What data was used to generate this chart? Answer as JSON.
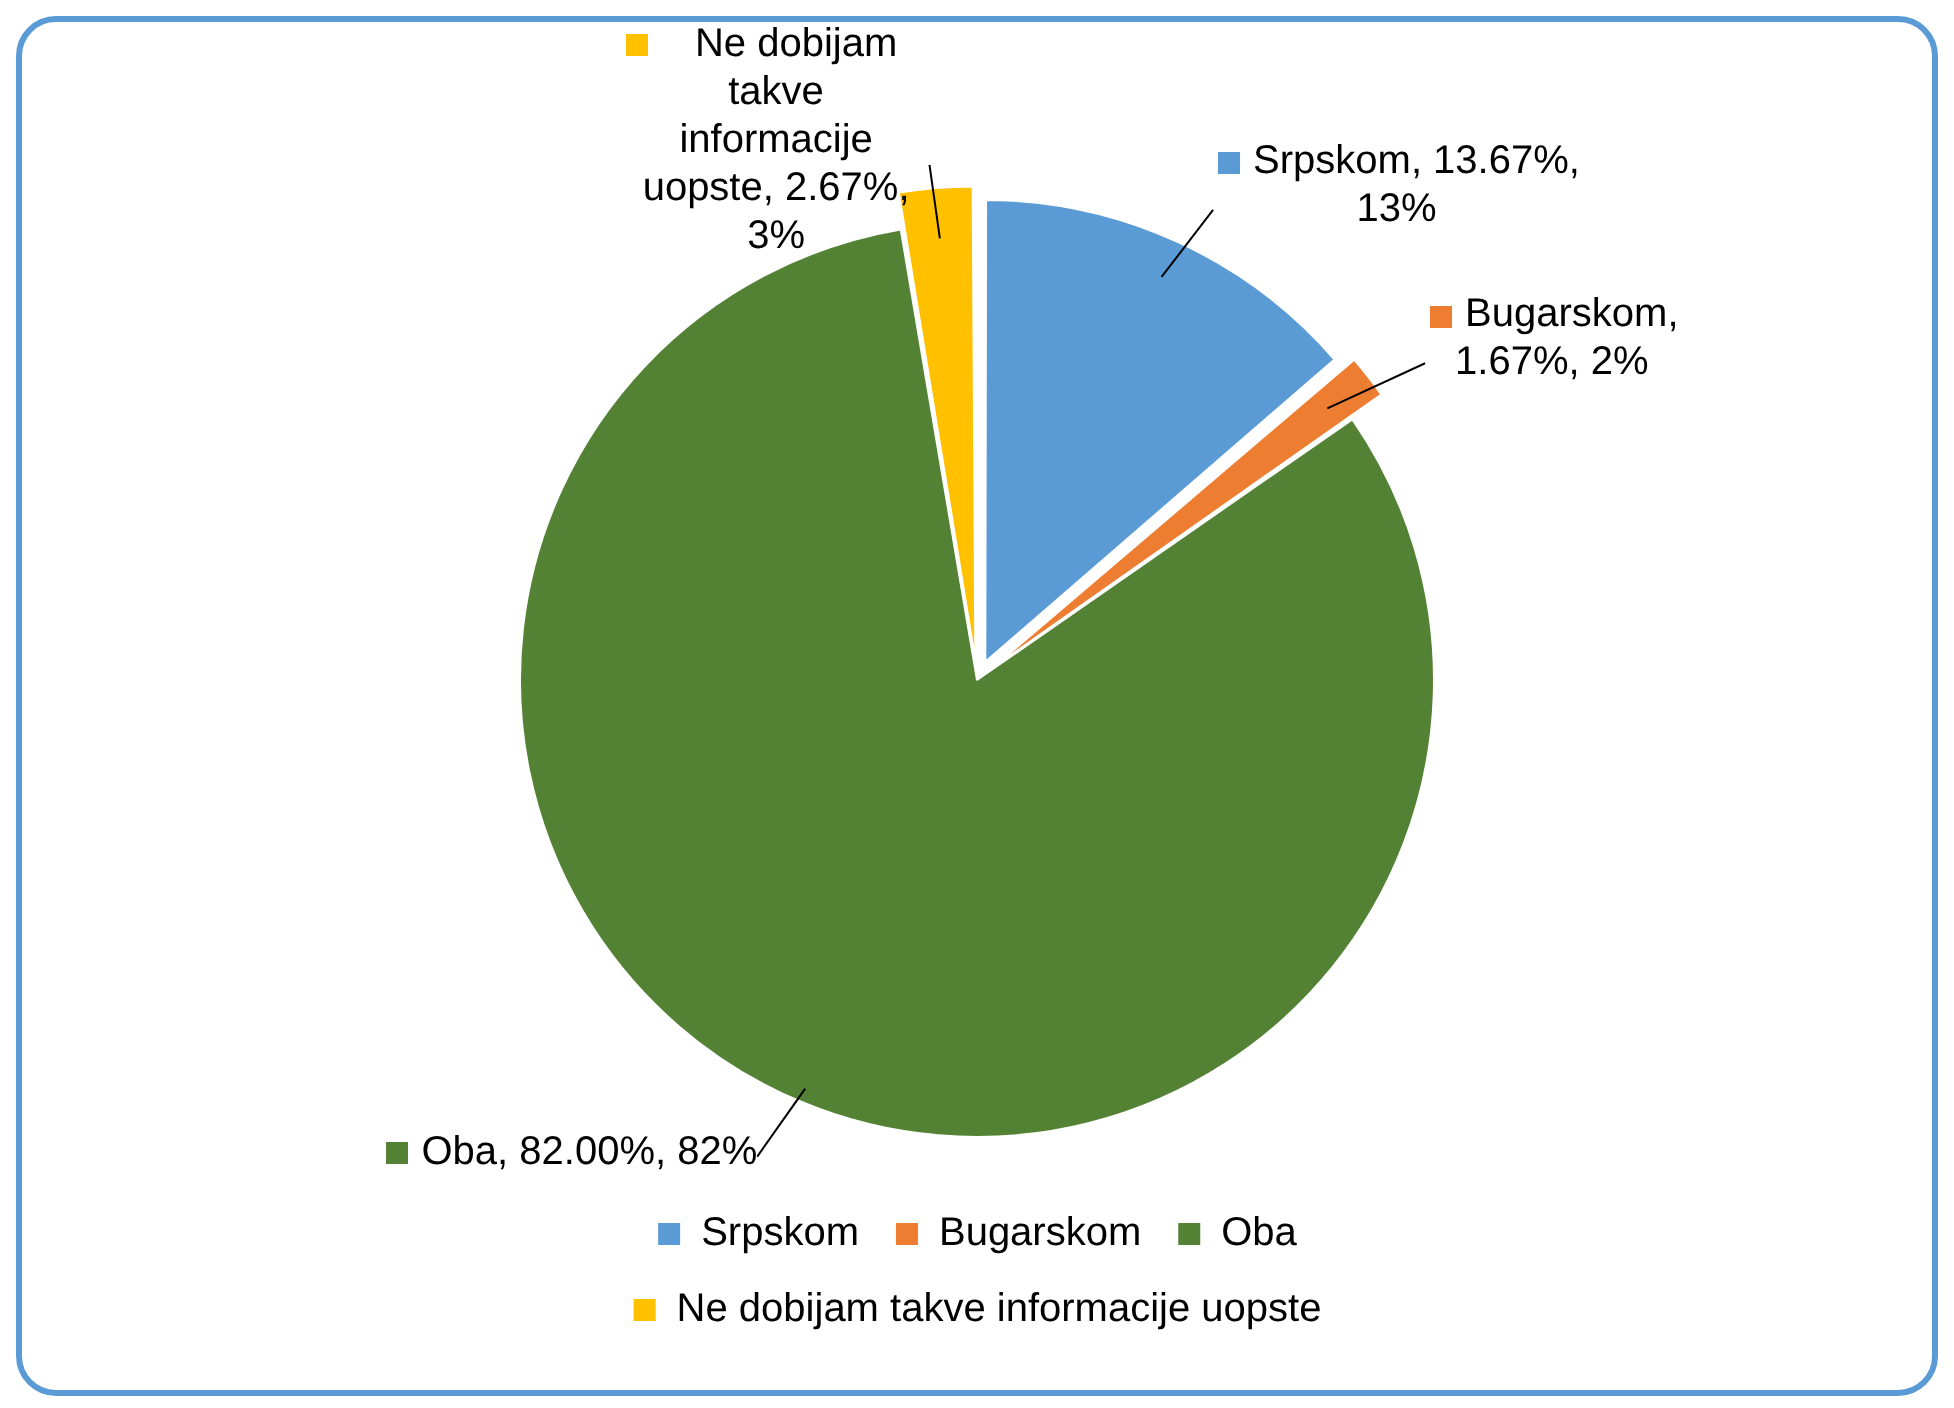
{
  "chart_data": {
    "type": "pie",
    "categories": [
      "Srpskom",
      "Bugarskom",
      "Oba",
      "Ne dobijam takve informacije uopste"
    ],
    "values": [
      13.67,
      1.67,
      82.0,
      2.67
    ],
    "colors": [
      "#5b9bd5",
      "#ed7d31",
      "#548235",
      "#ffc000"
    ],
    "value_labels": [
      "Srpskom, 13.67%, 13%",
      "Bugarskom, 1.67%, 2%",
      "Oba, 82.00%, 82%",
      "Ne dobijam takve informacije uopste, 2.67%, 3%"
    ],
    "legend": "bottom"
  }
}
